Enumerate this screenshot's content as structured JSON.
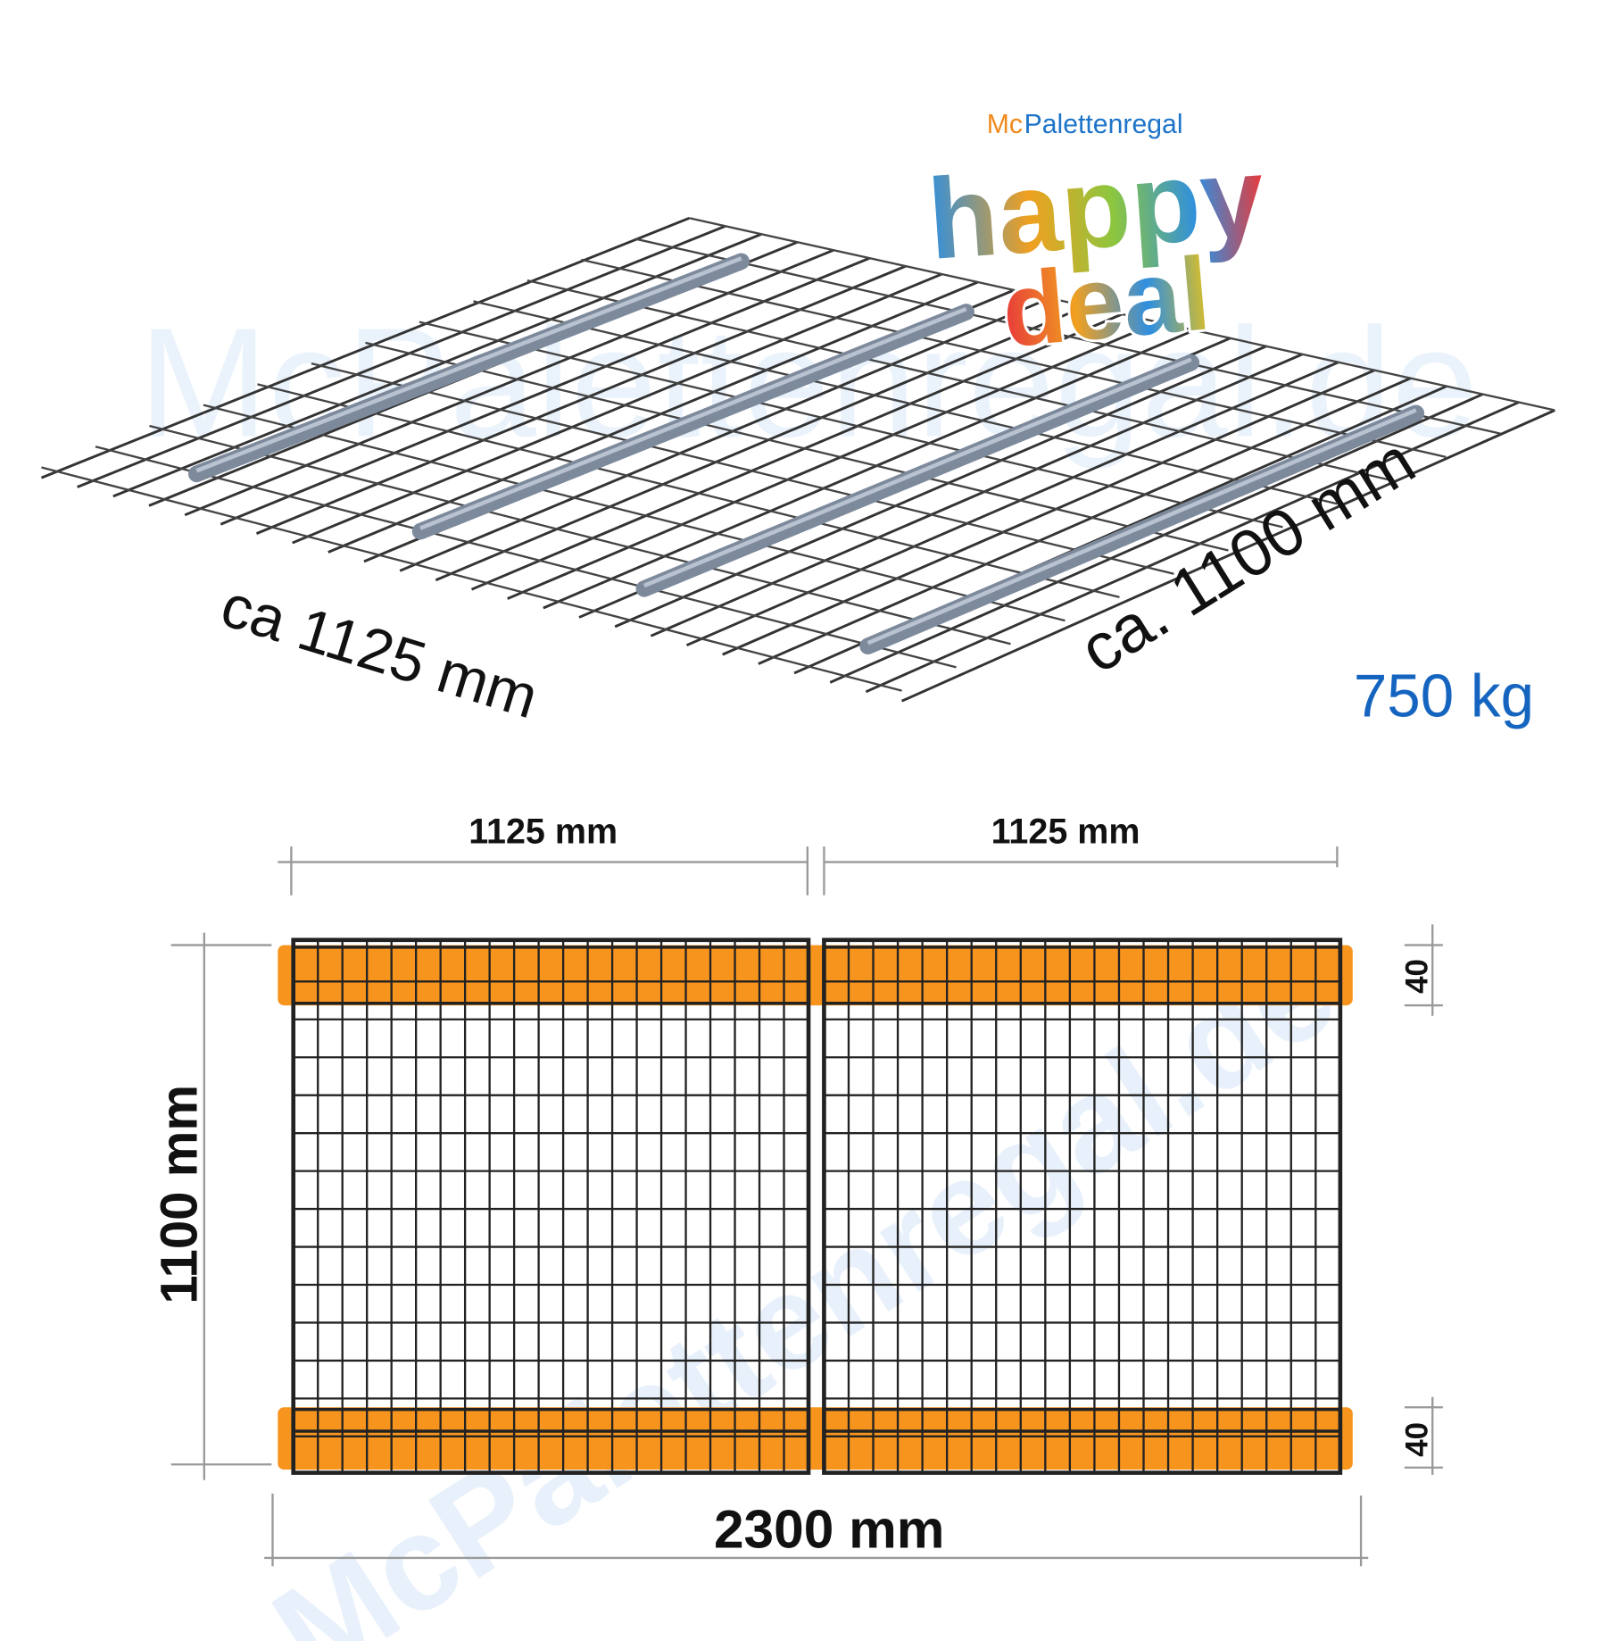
{
  "logo": {
    "brand_prefix": "Mc",
    "brand_name": "Palettenregal",
    "word_1": "happy",
    "word_2": "deal"
  },
  "watermark": "McPalettenregal.de",
  "perspective": {
    "width_label": "ca 1125 mm",
    "depth_label": "ca. 1100 mm",
    "load_label": "750 kg"
  },
  "plan": {
    "panel_width_1": "1125 mm",
    "panel_width_2": "1125 mm",
    "depth": "1100 mm",
    "total_width": "2300 mm",
    "beam_top": "40",
    "beam_bottom": "40"
  }
}
